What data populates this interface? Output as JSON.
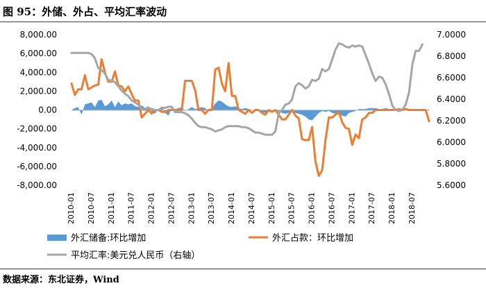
{
  "title": "图 95：外储、外占、平均汇率波动",
  "source": "数据来源：东北证券，Wind",
  "colors": {
    "reserves": "#5b9bd5",
    "funds": "#ed7d31",
    "rate": "#a5a5a5"
  },
  "chart_data": {
    "type": "line",
    "x_tick_labels": [
      "2010-01",
      "2010-07",
      "2011-01",
      "2011-07",
      "2012-01",
      "2012-07",
      "2013-01",
      "2013-07",
      "2014-01",
      "2014-07",
      "2015-01",
      "2015-07",
      "2016-01",
      "2016-07",
      "2017-01",
      "2017-07",
      "2018-01",
      "2018-07"
    ],
    "y_left": {
      "ticks": [
        "-8,000.00",
        "-6,000.00",
        "-4,000.00",
        "-2,000.00",
        "0.00",
        "2,000.00",
        "4,000.00",
        "6,000.00",
        "8,000.00"
      ],
      "min": -8000,
      "max": 8000
    },
    "y_right": {
      "ticks": [
        "5.6000",
        "5.8000",
        "6.0000",
        "6.2000",
        "6.4000",
        "6.6000",
        "6.8000",
        "7.0000"
      ],
      "min": 5.6,
      "max": 7.0
    },
    "x_range": [
      0,
      107
    ],
    "series": [
      {
        "name": "外汇储备:环比增加",
        "type": "area",
        "axis": "left",
        "values": [
          0,
          200,
          300,
          -500,
          600,
          700,
          800,
          300,
          1000,
          1100,
          400,
          600,
          1000,
          300,
          900,
          500,
          700,
          600,
          700,
          400,
          300,
          500,
          200,
          400,
          -200,
          -400,
          100,
          400,
          -300,
          -600,
          200,
          100,
          200,
          300,
          -100,
          100,
          300,
          100,
          200,
          300,
          200,
          -100,
          100,
          700,
          1000,
          900,
          600,
          400,
          300,
          400,
          200,
          100,
          200,
          100,
          0,
          -100,
          -100,
          -200,
          -300,
          -200,
          -100,
          100,
          -200,
          -300,
          -400,
          -300,
          -200,
          -300,
          -400,
          -500,
          -700,
          -1000,
          -1100,
          -700,
          -300,
          -100,
          -200,
          -100,
          -300,
          -400,
          -500,
          -600,
          -700,
          -300,
          -200,
          -100,
          100,
          100,
          100,
          200,
          200,
          200,
          100,
          100,
          200,
          100,
          0,
          -100,
          -200,
          -100,
          0,
          100,
          100,
          0,
          -100,
          -100,
          -100,
          100
        ]
      },
      {
        "name": "外汇占款：环比增加",
        "type": "line",
        "axis": "left",
        "values": [
          2800,
          1600,
          2200,
          2200,
          3700,
          2200,
          2400,
          2600,
          2700,
          5400,
          4000,
          3000,
          3000,
          4100,
          2600,
          2500,
          2000,
          2500,
          1700,
          1000,
          1000,
          -800,
          -400,
          0,
          -400,
          0,
          0,
          -200,
          -200,
          0,
          0,
          0,
          0,
          0,
          3100,
          3100,
          3100,
          2100,
          0,
          0,
          -400,
          0,
          0,
          4300,
          4500,
          2800,
          2000,
          5000,
          1500,
          1500,
          0,
          -200,
          -400,
          0,
          -300,
          0,
          0,
          -300,
          -500,
          0,
          -200,
          0,
          -500,
          -1000,
          -1000,
          -500,
          0,
          -600,
          -900,
          -3100,
          -3200,
          -3200,
          -1800,
          -5500,
          -7000,
          -6400,
          -3200,
          -800,
          -800,
          -500,
          -200,
          -1300,
          -1900,
          -2000,
          -3700,
          -2600,
          -3000,
          -1000,
          -800,
          -300,
          -300,
          0,
          0,
          0,
          0,
          0,
          0,
          0,
          100,
          0,
          100,
          0,
          0,
          0,
          0,
          0,
          0,
          -1200
        ]
      },
      {
        "name": "平均汇率:美元兑人民币（右轴）",
        "type": "line",
        "axis": "right",
        "values": [
          6.83,
          6.83,
          6.83,
          6.83,
          6.83,
          6.83,
          6.82,
          6.78,
          6.69,
          6.67,
          6.64,
          6.58,
          6.57,
          6.56,
          6.52,
          6.48,
          6.45,
          6.43,
          6.39,
          6.37,
          6.35,
          6.31,
          6.3,
          6.32,
          6.31,
          6.3,
          6.3,
          6.32,
          6.32,
          6.33,
          6.33,
          6.28,
          6.28,
          6.28,
          6.27,
          6.25,
          6.22,
          6.18,
          6.15,
          6.14,
          6.14,
          6.13,
          6.12,
          6.1,
          6.11,
          6.12,
          6.14,
          6.15,
          6.15,
          6.15,
          6.15,
          6.14,
          6.14,
          6.13,
          6.11,
          6.09,
          6.09,
          6.08,
          6.07,
          6.07,
          6.07,
          6.1,
          6.27,
          6.3,
          6.35,
          6.36,
          6.4,
          6.52,
          6.55,
          6.53,
          6.5,
          6.52,
          6.58,
          6.57,
          6.59,
          6.68,
          6.66,
          6.68,
          6.77,
          6.86,
          6.92,
          6.91,
          6.89,
          6.88,
          6.9,
          6.89,
          6.9,
          6.89,
          6.81,
          6.73,
          6.64,
          6.57,
          6.61,
          6.6,
          6.54,
          6.45,
          6.34,
          6.3,
          6.29,
          6.3,
          6.35,
          6.46,
          6.72,
          6.85,
          6.85,
          6.91
        ]
      }
    ],
    "legend_position": "bottom",
    "grid": false
  }
}
